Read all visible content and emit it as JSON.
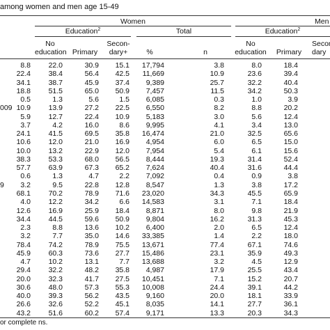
{
  "caption": "among women and men age 15-49",
  "headers": {
    "women": "Women",
    "men": "Men",
    "education_women": "Education",
    "education_men": "Education",
    "education_sup": "2",
    "total": "Total",
    "no_education": [
      "No",
      "education"
    ],
    "primary": "Primary",
    "secondary_women": [
      "Secon-",
      "dary+"
    ],
    "secondary_men": [
      "Secon",
      "dary"
    ],
    "pct": "%",
    "n": "n"
  },
  "rows": [
    {
      "label": "",
      "w": [
        "8.8",
        "22.0",
        "30.9",
        "15.1",
        "17,794"
      ],
      "m": [
        "3.8",
        "8.0",
        "18.4"
      ]
    },
    {
      "label": "",
      "w": [
        "22.4",
        "38.4",
        "56.4",
        "42.5",
        "11,669"
      ],
      "m": [
        "10.9",
        "23.6",
        "39.4"
      ]
    },
    {
      "label": "",
      "w": [
        "34.1",
        "38.7",
        "45.9",
        "37.4",
        "9,389"
      ],
      "m": [
        "25.7",
        "32.2",
        "40.4"
      ]
    },
    {
      "label": "",
      "w": [
        "18.8",
        "51.5",
        "65.0",
        "50.9",
        "7,457"
      ],
      "m": [
        "11.5",
        "34.2",
        "50.3"
      ]
    },
    {
      "label": "",
      "w": [
        "0.5",
        "1.3",
        "5.6",
        "1.5",
        "6,085"
      ],
      "m": [
        "0.3",
        "1.0",
        "3.9"
      ]
    },
    {
      "label": "009",
      "w": [
        "10.9",
        "13.9",
        "27.2",
        "22.5",
        "6,550"
      ],
      "m": [
        "8.2",
        "8.8",
        "20.2"
      ]
    },
    {
      "label": "",
      "w": [
        "5.9",
        "12.7",
        "22.4",
        "10.9",
        "5,183"
      ],
      "m": [
        "3.0",
        "5.6",
        "12.4"
      ]
    },
    {
      "label": "",
      "w": [
        "3.7",
        "4.2",
        "16.0",
        "8.6",
        "9,995"
      ],
      "m": [
        "4.1",
        "3.4",
        "13.0"
      ]
    },
    {
      "label": "",
      "w": [
        "24.1",
        "41.5",
        "69.5",
        "35.8",
        "16,474"
      ],
      "m": [
        "21.0",
        "32.5",
        "65.6"
      ]
    },
    {
      "label": "",
      "w": [
        "10.6",
        "12.0",
        "21.0",
        "16.9",
        "4,954"
      ],
      "m": [
        "6.0",
        "6.5",
        "15.0"
      ]
    },
    {
      "label": "",
      "w": [
        "10.0",
        "13.2",
        "22.9",
        "12.0",
        "7,954"
      ],
      "m": [
        "5.4",
        "6.1",
        "15.6"
      ]
    },
    {
      "label": "",
      "w": [
        "38.3",
        "53.3",
        "68.0",
        "56.5",
        "8,444"
      ],
      "m": [
        "19.3",
        "31.4",
        "52.4"
      ]
    },
    {
      "label": "",
      "w": [
        "57.7",
        "63.9",
        "67.3",
        "65.2",
        "7,624"
      ],
      "m": [
        "40.4",
        "31.6",
        "44.4"
      ]
    },
    {
      "label": "",
      "w": [
        "0.6",
        "1.3",
        "4.7",
        "2.2",
        "7,092"
      ],
      "m": [
        "0.4",
        "0.9",
        "3.8"
      ]
    },
    {
      "label": "9",
      "w": [
        "3.2",
        "9.5",
        "22.8",
        "12.8",
        "8,547"
      ],
      "m": [
        "1.3",
        "3.8",
        "17.2"
      ]
    },
    {
      "label": "",
      "w": [
        "68.1",
        "70.2",
        "78.9",
        "71.6",
        "23,020"
      ],
      "m": [
        "34.3",
        "45.5",
        "65.9"
      ]
    },
    {
      "label": "",
      "w": [
        "4.0",
        "12.2",
        "34.2",
        "6.6",
        "14,583"
      ],
      "m": [
        "3.1",
        "7.1",
        "18.4"
      ]
    },
    {
      "label": "",
      "w": [
        "12.6",
        "16.9",
        "25.9",
        "18.4",
        "8,871"
      ],
      "m": [
        "8.0",
        "9.8",
        "21.9"
      ]
    },
    {
      "label": "",
      "w": [
        "34.4",
        "44.5",
        "59.6",
        "50.9",
        "9,804"
      ],
      "m": [
        "16.2",
        "31.3",
        "45.3"
      ]
    },
    {
      "label": "",
      "w": [
        "2.3",
        "8.8",
        "13.6",
        "10.2",
        "6,400"
      ],
      "m": [
        "2.0",
        "6.5",
        "12.4"
      ]
    },
    {
      "label": "",
      "w": [
        "3.2",
        "7.7",
        "35.0",
        "14.6",
        "33,385"
      ],
      "m": [
        "1.4",
        "2.2",
        "18.0"
      ]
    },
    {
      "label": "",
      "w": [
        "78.4",
        "74.2",
        "78.9",
        "75.5",
        "13,671"
      ],
      "m": [
        "77.4",
        "67.1",
        "74.6"
      ]
    },
    {
      "label": "",
      "w": [
        "45.9",
        "60.3",
        "73.6",
        "27.7",
        "15,486"
      ],
      "m": [
        "23.1",
        "35.9",
        "49.3"
      ]
    },
    {
      "label": "",
      "w": [
        "4.7",
        "10.2",
        "13.1",
        "7.7",
        "13,688"
      ],
      "m": [
        "3.2",
        "4.5",
        "12.9"
      ]
    },
    {
      "label": "",
      "w": [
        "29.4",
        "32.2",
        "48.2",
        "35.8",
        "4,987"
      ],
      "m": [
        "17.9",
        "25.5",
        "43.4"
      ]
    },
    {
      "label": "",
      "w": [
        "20.0",
        "32.3",
        "41.7",
        "27.5",
        "10,451"
      ],
      "m": [
        "7.1",
        "15.2",
        "20.7"
      ]
    },
    {
      "label": "",
      "w": [
        "30.6",
        "48.0",
        "57.3",
        "55.3",
        "10,008"
      ],
      "m": [
        "24.4",
        "39.1",
        "44.2"
      ]
    },
    {
      "label": "",
      "w": [
        "40.0",
        "39.3",
        "56.2",
        "43.5",
        "9,160"
      ],
      "m": [
        "20.0",
        "18.1",
        "33.9"
      ]
    },
    {
      "label": "",
      "w": [
        "26.6",
        "32.6",
        "52.2",
        "45.1",
        "8,035"
      ],
      "m": [
        "14.1",
        "27.7",
        "36.1"
      ]
    },
    {
      "label": "",
      "w": [
        "43.2",
        "51.6",
        "60.2",
        "57.4",
        "9,171"
      ],
      "m": [
        "13.3",
        "20.3",
        "34.3"
      ]
    }
  ],
  "footnote": "or complete ns."
}
